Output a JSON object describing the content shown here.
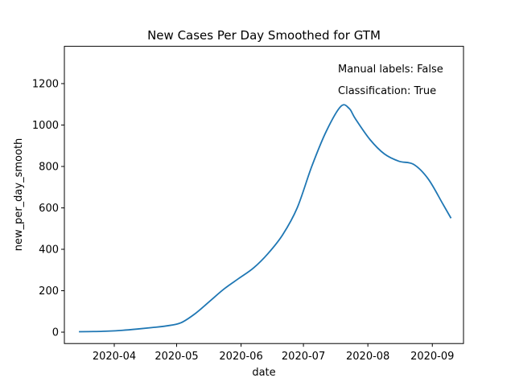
{
  "chart_data": {
    "type": "line",
    "title": "New Cases Per Day Smoothed for GTM",
    "xlabel": "date",
    "ylabel": "new_per_day_smooth",
    "x_ticks": [
      "2020-04",
      "2020-05",
      "2020-06",
      "2020-07",
      "2020-08",
      "2020-09"
    ],
    "y_ticks": [
      0,
      200,
      400,
      600,
      800,
      1000,
      1200
    ],
    "ylim": [
      -55,
      1380
    ],
    "xlim": [
      "2020-03-08",
      "2020-09-16"
    ],
    "annotations": [
      "Manual labels: False",
      "Classification: True"
    ],
    "grid": false,
    "legend": "none",
    "line_color": "#1f77b4",
    "series": [
      {
        "x": [
          "2020-03-15",
          "2020-03-22",
          "2020-03-29",
          "2020-04-05",
          "2020-04-12",
          "2020-04-19",
          "2020-04-26",
          "2020-05-03",
          "2020-05-10",
          "2020-05-17",
          "2020-05-24",
          "2020-05-31",
          "2020-06-07",
          "2020-06-14",
          "2020-06-21",
          "2020-06-28",
          "2020-07-05",
          "2020-07-12",
          "2020-07-19",
          "2020-07-23",
          "2020-07-26",
          "2020-08-02",
          "2020-08-09",
          "2020-08-16",
          "2020-08-23",
          "2020-08-30",
          "2020-09-06",
          "2020-09-10"
        ],
        "values": [
          2,
          3,
          5,
          9,
          15,
          22,
          30,
          45,
          90,
          150,
          210,
          260,
          310,
          380,
          470,
          600,
          800,
          970,
          1090,
          1080,
          1030,
          930,
          860,
          825,
          810,
          740,
          620,
          550
        ]
      }
    ]
  }
}
